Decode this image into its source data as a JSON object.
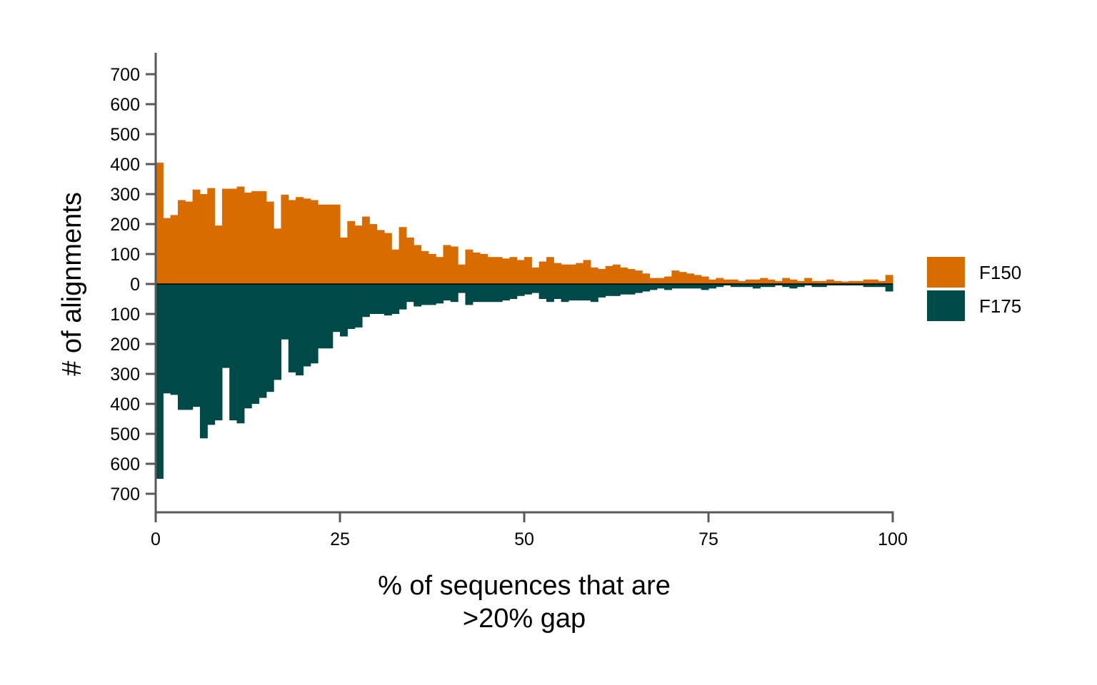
{
  "chart_data": {
    "type": "bar",
    "layout": "mirrored-histogram",
    "xlabel_lines": [
      "% of sequences that are",
      ">20% gap"
    ],
    "ylabel": "# of alignments",
    "xlim": [
      0,
      100
    ],
    "ylim": [
      -700,
      700
    ],
    "x_ticks": [
      0,
      25,
      50,
      75,
      100
    ],
    "x_tick_labels": [
      "0",
      "25",
      "50",
      "75",
      "100"
    ],
    "y_ticks": [
      700,
      600,
      500,
      400,
      300,
      200,
      100,
      0,
      -100,
      -200,
      -300,
      -400,
      -500,
      -600,
      -700
    ],
    "y_tick_labels": [
      "700",
      "600",
      "500",
      "400",
      "300",
      "200",
      "100",
      "0",
      "100",
      "200",
      "300",
      "400",
      "500",
      "600",
      "700"
    ],
    "grid": false,
    "legend_position": "right",
    "bin_width": 1,
    "bin_starts": [
      0,
      1,
      2,
      3,
      4,
      5,
      6,
      7,
      8,
      9,
      10,
      11,
      12,
      13,
      14,
      15,
      16,
      17,
      18,
      19,
      20,
      21,
      22,
      23,
      24,
      25,
      26,
      27,
      28,
      29,
      30,
      31,
      32,
      33,
      34,
      35,
      36,
      37,
      38,
      39,
      40,
      41,
      42,
      43,
      44,
      45,
      46,
      47,
      48,
      49,
      50,
      51,
      52,
      53,
      54,
      55,
      56,
      57,
      58,
      59,
      60,
      61,
      62,
      63,
      64,
      65,
      66,
      67,
      68,
      69,
      70,
      71,
      72,
      73,
      74,
      75,
      76,
      77,
      78,
      79,
      80,
      81,
      82,
      83,
      84,
      85,
      86,
      87,
      88,
      89,
      90,
      91,
      92,
      93,
      94,
      95,
      96,
      97,
      98,
      99
    ],
    "series": [
      {
        "name": "F150",
        "color": "#D96C00",
        "direction": "up",
        "values": [
          405,
          220,
          230,
          280,
          275,
          315,
          300,
          320,
          195,
          318,
          318,
          325,
          305,
          310,
          310,
          275,
          185,
          298,
          280,
          290,
          285,
          280,
          265,
          265,
          265,
          155,
          210,
          195,
          225,
          200,
          180,
          170,
          115,
          190,
          155,
          130,
          110,
          100,
          90,
          130,
          125,
          65,
          115,
          105,
          100,
          90,
          90,
          85,
          90,
          80,
          90,
          55,
          75,
          90,
          70,
          65,
          65,
          70,
          80,
          55,
          50,
          60,
          65,
          55,
          50,
          45,
          35,
          20,
          20,
          25,
          45,
          40,
          35,
          30,
          25,
          15,
          20,
          15,
          15,
          10,
          15,
          15,
          20,
          15,
          10,
          20,
          15,
          10,
          20,
          10,
          10,
          15,
          10,
          8,
          10,
          10,
          15,
          15,
          10,
          30
        ],
        "legend_label": "F150"
      },
      {
        "name": "F175",
        "color": "#004949",
        "direction": "down",
        "values": [
          650,
          365,
          370,
          420,
          420,
          410,
          515,
          470,
          455,
          280,
          455,
          465,
          415,
          400,
          380,
          360,
          320,
          185,
          295,
          305,
          275,
          265,
          215,
          215,
          160,
          175,
          150,
          145,
          110,
          100,
          100,
          105,
          100,
          85,
          60,
          75,
          70,
          70,
          65,
          55,
          60,
          30,
          70,
          60,
          60,
          60,
          60,
          55,
          50,
          40,
          35,
          30,
          50,
          60,
          50,
          60,
          55,
          55,
          55,
          60,
          45,
          40,
          40,
          35,
          35,
          30,
          25,
          20,
          15,
          20,
          15,
          15,
          15,
          15,
          20,
          15,
          10,
          5,
          10,
          10,
          10,
          15,
          10,
          10,
          5,
          10,
          15,
          10,
          5,
          10,
          10,
          5,
          5,
          5,
          5,
          5,
          10,
          10,
          10,
          25
        ],
        "legend_label": "F175"
      }
    ]
  }
}
